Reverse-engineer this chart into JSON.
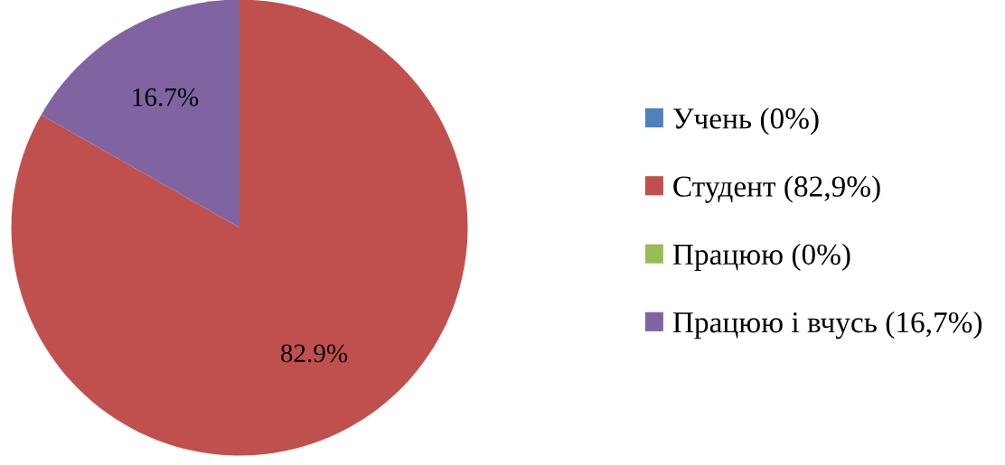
{
  "chart_data": {
    "type": "pie",
    "categories": [
      "Учень (0%)",
      "Студент (82,9%)",
      "Працюю (0%)",
      "Працюю і вчусь (16,7%)"
    ],
    "values": [
      0,
      82.9,
      0,
      16.7
    ],
    "colors": [
      "#4f81bd",
      "#c0504d",
      "#9bbb59",
      "#8064a2"
    ],
    "value_labels": [
      null,
      "82.9%",
      null,
      "16.7%"
    ],
    "legend": "right"
  }
}
